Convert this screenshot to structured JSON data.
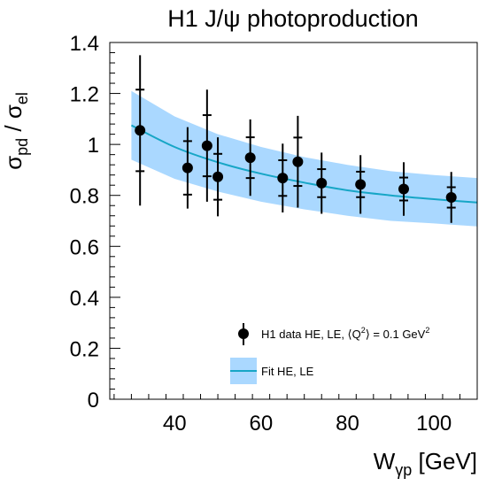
{
  "chart_data": {
    "type": "scatter",
    "title": "H1 J/ψ photoproduction",
    "xlabel": "Wγp [GeV]",
    "xlabel_parts": {
      "main": "W",
      "sub": "γp",
      "unit": " [GeV]"
    },
    "ylabel": "σpd / σel",
    "ylabel_parts": {
      "sigma1": "σ",
      "sub1": "pd",
      "sep": " / ",
      "sigma2": "σ",
      "sub2": "el"
    },
    "xlim": [
      25,
      110
    ],
    "ylim": [
      0,
      1.4
    ],
    "x_ticks": [
      40,
      60,
      80,
      100
    ],
    "x_tick_labels": [
      "40",
      "60",
      "80",
      "100"
    ],
    "y_ticks": [
      0,
      0.2,
      0.4,
      0.6,
      0.8,
      1.0,
      1.2,
      1.4
    ],
    "y_tick_labels": [
      "0",
      "0.2",
      "0.4",
      "0.6",
      "0.8",
      "1",
      "1.2",
      "1.4"
    ],
    "grid": false,
    "legend_position": "bottom-right",
    "series": [
      {
        "name": "H1 data HE, LE, ⟨Q²⟩ = 0.1 GeV²",
        "legend_parts": {
          "pre": "H1 data HE, LE, ⟨Q",
          "sup1": "2",
          "mid": "⟩ = 0.1 GeV",
          "sup2": "2"
        },
        "points": [
          {
            "x": 32,
            "y": 1.055,
            "stat": 0.16,
            "tot": 0.295
          },
          {
            "x": 43,
            "y": 0.908,
            "stat": 0.105,
            "tot": 0.16
          },
          {
            "x": 47.5,
            "y": 0.995,
            "stat": 0.12,
            "tot": 0.22
          },
          {
            "x": 50,
            "y": 0.873,
            "stat": 0.09,
            "tot": 0.155
          },
          {
            "x": 57.5,
            "y": 0.948,
            "stat": 0.08,
            "tot": 0.15
          },
          {
            "x": 65,
            "y": 0.868,
            "stat": 0.07,
            "tot": 0.135
          },
          {
            "x": 68.5,
            "y": 0.932,
            "stat": 0.095,
            "tot": 0.18
          },
          {
            "x": 74,
            "y": 0.848,
            "stat": 0.055,
            "tot": 0.12
          },
          {
            "x": 83,
            "y": 0.843,
            "stat": 0.05,
            "tot": 0.115
          },
          {
            "x": 93,
            "y": 0.825,
            "stat": 0.045,
            "tot": 0.105
          },
          {
            "x": 104,
            "y": 0.792,
            "stat": 0.04,
            "tot": 0.1
          }
        ]
      },
      {
        "name": "Fit HE, LE",
        "type": "line-with-band",
        "curve": [
          {
            "x": 30,
            "y": 1.075
          },
          {
            "x": 40,
            "y": 0.99
          },
          {
            "x": 50,
            "y": 0.93
          },
          {
            "x": 60,
            "y": 0.885
          },
          {
            "x": 70,
            "y": 0.85
          },
          {
            "x": 80,
            "y": 0.82
          },
          {
            "x": 90,
            "y": 0.8
          },
          {
            "x": 100,
            "y": 0.785
          },
          {
            "x": 110,
            "y": 0.772
          }
        ],
        "band_upper": [
          {
            "x": 30,
            "y": 1.21
          },
          {
            "x": 40,
            "y": 1.11
          },
          {
            "x": 50,
            "y": 1.04
          },
          {
            "x": 60,
            "y": 0.99
          },
          {
            "x": 70,
            "y": 0.95
          },
          {
            "x": 80,
            "y": 0.92
          },
          {
            "x": 90,
            "y": 0.895
          },
          {
            "x": 100,
            "y": 0.88
          },
          {
            "x": 110,
            "y": 0.868
          }
        ],
        "band_lower": [
          {
            "x": 30,
            "y": 0.94
          },
          {
            "x": 40,
            "y": 0.865
          },
          {
            "x": 50,
            "y": 0.815
          },
          {
            "x": 60,
            "y": 0.775
          },
          {
            "x": 70,
            "y": 0.745
          },
          {
            "x": 80,
            "y": 0.72
          },
          {
            "x": 90,
            "y": 0.7
          },
          {
            "x": 100,
            "y": 0.69
          },
          {
            "x": 110,
            "y": 0.678
          }
        ]
      }
    ],
    "colors": {
      "band": "#aad8ff",
      "fit_line": "#17a6c6",
      "marker": "#000000"
    }
  }
}
